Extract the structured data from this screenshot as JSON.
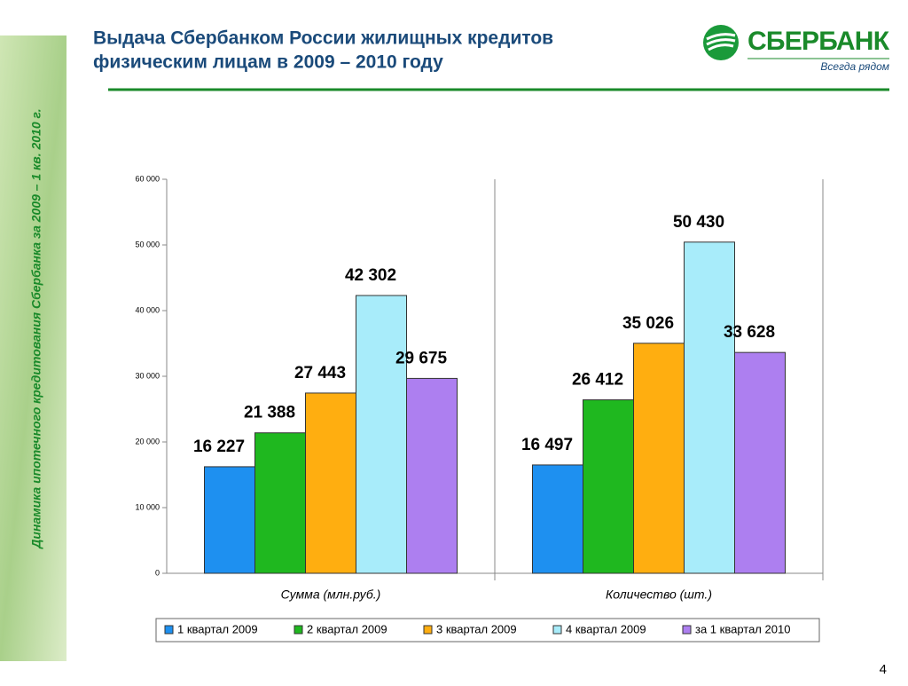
{
  "header": {
    "title_lines": [
      "Выдача Сбербанком России жилищных кредитов",
      "физическим лицам в 2009 – 2010 году"
    ]
  },
  "logo": {
    "name": "СБЕРБАНК",
    "slogan": "Всегда рядом"
  },
  "sidebar": {
    "text": "Динамика ипотечного кредитования Сбербанка за 2009 – 1 кв. 2010 г."
  },
  "page_number": "4",
  "chart_data": {
    "type": "bar",
    "categories": [
      "Сумма (млн.руб.)",
      "Количество (шт.)"
    ],
    "series": [
      {
        "name": "1 квартал 2009",
        "color": "#1e90f0",
        "values": [
          16227,
          16497
        ],
        "value_labels": [
          "16 227",
          "16 497"
        ]
      },
      {
        "name": "2 квартал 2009",
        "color": "#1fb81f",
        "values": [
          21388,
          26412
        ],
        "value_labels": [
          "21 388",
          "26 412"
        ]
      },
      {
        "name": "3 квартал 2009",
        "color": "#ffae10",
        "values": [
          27443,
          35026
        ],
        "value_labels": [
          "27 443",
          "35 026"
        ]
      },
      {
        "name": "4 квартал 2009",
        "color": "#a8ecfa",
        "values": [
          42302,
          50430
        ],
        "value_labels": [
          "42 302",
          "50 430"
        ]
      },
      {
        "name": "за 1 квартал 2010",
        "color": "#ad7ff0",
        "values": [
          29675,
          33628
        ],
        "value_labels": [
          "29 675",
          "33 628"
        ]
      }
    ],
    "ylim": [
      0,
      60000
    ],
    "yticks": [
      0,
      {
        "value": 10000,
        "label": "10 000"
      },
      {
        "value": 20000,
        "label": "20 000"
      },
      {
        "value": 30000,
        "label": "30 000"
      },
      {
        "value": 40000,
        "label": "40 000"
      },
      {
        "value": 50000,
        "label": "50 000"
      },
      {
        "value": 60000,
        "label": "60 000"
      }
    ],
    "legend": "bottom"
  }
}
